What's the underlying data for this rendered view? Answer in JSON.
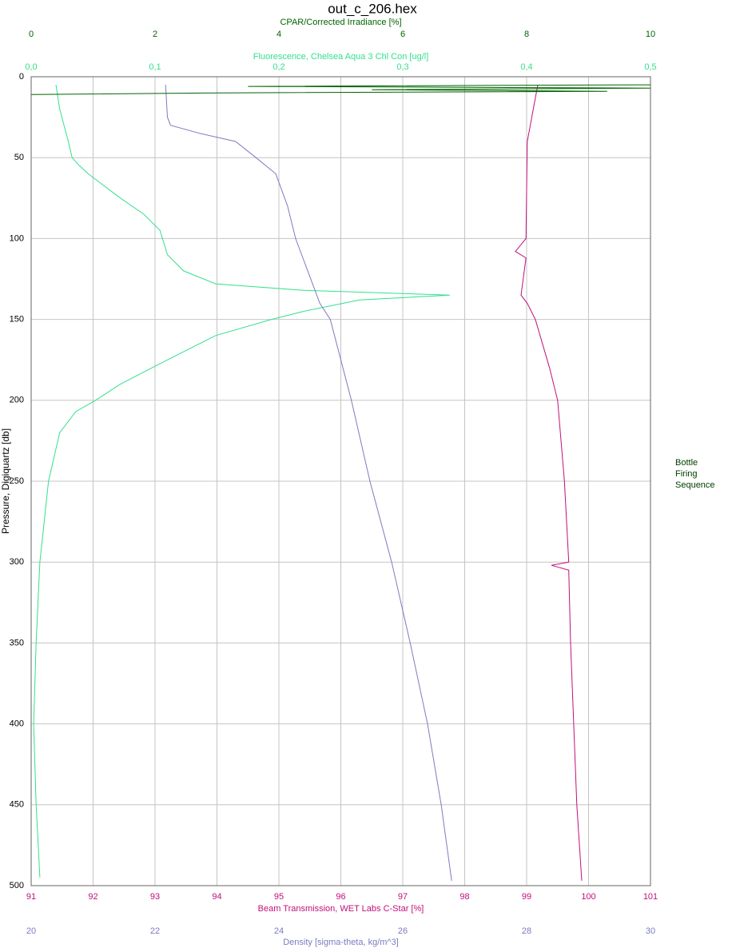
{
  "chart_data": {
    "type": "line",
    "title": "out_c_206.hex",
    "ylabel": "Pressure, Digiquartz [db]",
    "ylim": [
      0,
      500
    ],
    "yticks": [
      0,
      50,
      100,
      150,
      200,
      250,
      300,
      350,
      400,
      450,
      500
    ],
    "y_inverted": true,
    "grid": true,
    "side_label": [
      "Bottle",
      "Firing",
      "Sequence"
    ],
    "axes": {
      "cpar": {
        "label": "CPAR/Corrected Irradiance [%]",
        "side": "top",
        "color": "#006400",
        "lim": [
          0,
          10
        ],
        "ticks": [
          0,
          2,
          4,
          6,
          8,
          10
        ]
      },
      "fluorescence": {
        "label": "Fluorescence, Chelsea Aqua 3 Chl Con [ug/l]",
        "side": "top",
        "color": "#33e08c",
        "lim": [
          0,
          0.5
        ],
        "ticks": [
          {
            "value": 0,
            "label": "0,0"
          },
          {
            "value": 0.1,
            "label": "0,1"
          },
          {
            "value": 0.2,
            "label": "0,2"
          },
          {
            "value": 0.3,
            "label": "0,3"
          },
          {
            "value": 0.4,
            "label": "0,4"
          },
          {
            "value": 0.5,
            "label": "0,5"
          }
        ]
      },
      "beam": {
        "label": "Beam Transmission, WET Labs C-Star [%]",
        "side": "bottom",
        "color": "#c0107a",
        "lim": [
          91,
          101
        ],
        "ticks": [
          91,
          92,
          93,
          94,
          95,
          96,
          97,
          98,
          99,
          100,
          101
        ],
        "grid": true
      },
      "density": {
        "label": "Density [sigma-theta, kg/m^3]",
        "side": "bottom",
        "color": "#7b7bc0",
        "lim": [
          20,
          30
        ],
        "ticks": [
          20,
          22,
          24,
          26,
          28,
          30
        ]
      }
    },
    "series": [
      {
        "axis": "fluorescence",
        "color": "#33e08c",
        "pressure": [
          5,
          20,
          40,
          50,
          55,
          60,
          75,
          85,
          95,
          110,
          120,
          128,
          132,
          135,
          138,
          145,
          150,
          160,
          175,
          190,
          200,
          207,
          220,
          250,
          300,
          350,
          400,
          450,
          495
        ],
        "values": [
          0.02,
          0.023,
          0.03,
          0.033,
          0.039,
          0.046,
          0.072,
          0.091,
          0.104,
          0.11,
          0.123,
          0.149,
          0.22,
          0.338,
          0.265,
          0.22,
          0.194,
          0.149,
          0.11,
          0.072,
          0.052,
          0.036,
          0.023,
          0.014,
          0.007,
          0.004,
          0.002,
          0.004,
          0.007
        ]
      },
      {
        "axis": "density",
        "color": "#7b7bc0",
        "pressure": [
          5,
          25,
          30,
          35,
          40,
          50,
          60,
          80,
          100,
          140,
          150,
          200,
          250,
          300,
          350,
          400,
          450,
          497
        ],
        "values": [
          22.17,
          22.2,
          22.25,
          22.72,
          23.3,
          23.63,
          23.95,
          24.14,
          24.27,
          24.66,
          24.83,
          25.17,
          25.47,
          25.82,
          26.12,
          26.4,
          26.62,
          26.79
        ]
      },
      {
        "axis": "beam",
        "color": "#c0107a",
        "pressure": [
          5,
          40,
          100,
          108,
          112,
          135,
          140,
          150,
          180,
          200,
          250,
          300,
          302,
          305,
          350,
          400,
          450,
          497
        ],
        "values": [
          99.18,
          99.01,
          98.99,
          98.82,
          98.99,
          98.91,
          99.01,
          99.14,
          99.37,
          99.5,
          99.61,
          99.68,
          99.4,
          99.68,
          99.71,
          99.76,
          99.81,
          99.89
        ]
      },
      {
        "axis": "cpar",
        "color": "#006400",
        "pressure": [
          5,
          6,
          7,
          8,
          9,
          10,
          11
        ],
        "values": [
          10,
          3.5,
          10,
          5.5,
          9.3,
          3,
          0
        ]
      }
    ]
  }
}
